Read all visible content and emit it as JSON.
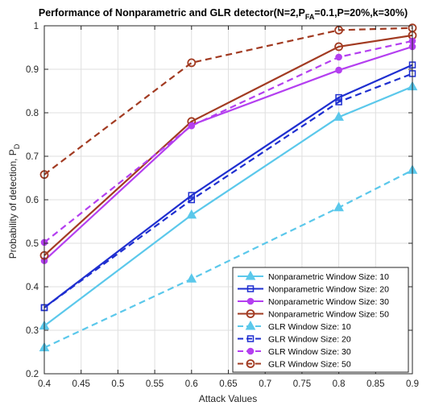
{
  "chart_data": {
    "type": "line",
    "title_main": "Performance of Nonparametric and GLR detector(N=2,P",
    "title_sub": "FA",
    "title_rest": "=0.1,P=20%,k=30%)",
    "xlabel": "Attack Values",
    "ylabel_main": "Probability of detection, P",
    "ylabel_sub": "D",
    "xlim": [
      0.4,
      0.9
    ],
    "ylim": [
      0.2,
      1.0
    ],
    "x_ticks": [
      "0.4",
      "0.45",
      "0.5",
      "0.55",
      "0.6",
      "0.65",
      "0.7",
      "0.75",
      "0.8",
      "0.85",
      "0.9"
    ],
    "y_ticks": [
      "0.2",
      "0.3",
      "0.4",
      "0.5",
      "0.6",
      "0.7",
      "0.8",
      "0.9",
      "1"
    ],
    "grid": true,
    "legend_position": "bottom-right",
    "x": [
      0.4,
      0.6,
      0.8,
      0.9
    ],
    "series": [
      {
        "name": "Nonparametric Window Size: 10",
        "values": [
          0.31,
          0.565,
          0.79,
          0.86
        ],
        "color": "#5BC8EB",
        "dash": "solid",
        "marker": "triangle"
      },
      {
        "name": "Nonparametric Window Size: 20",
        "values": [
          0.352,
          0.61,
          0.835,
          0.91
        ],
        "color": "#1F2FD0",
        "dash": "solid",
        "marker": "square"
      },
      {
        "name": "Nonparametric Window Size: 30",
        "values": [
          0.46,
          0.772,
          0.898,
          0.952
        ],
        "color": "#B43FF0",
        "dash": "solid",
        "marker": "circle"
      },
      {
        "name": "Nonparametric Window Size: 50",
        "values": [
          0.472,
          0.78,
          0.952,
          0.978
        ],
        "color": "#A23B22",
        "dash": "solid",
        "marker": "circle-open"
      },
      {
        "name": "GLR Window Size: 10",
        "values": [
          0.26,
          0.418,
          0.582,
          0.668
        ],
        "color": "#5BC8EB",
        "dash": "dashed",
        "marker": "triangle"
      },
      {
        "name": "GLR Window Size: 20",
        "values": [
          0.352,
          0.6,
          0.825,
          0.89
        ],
        "color": "#1F2FD0",
        "dash": "dashed",
        "marker": "square"
      },
      {
        "name": "GLR Window Size: 30",
        "values": [
          0.502,
          0.77,
          0.928,
          0.965
        ],
        "color": "#B43FF0",
        "dash": "dashed",
        "marker": "circle"
      },
      {
        "name": "GLR Window Size: 50",
        "values": [
          0.658,
          0.915,
          0.99,
          0.995
        ],
        "color": "#A23B22",
        "dash": "dashed",
        "marker": "circle-open"
      }
    ]
  }
}
